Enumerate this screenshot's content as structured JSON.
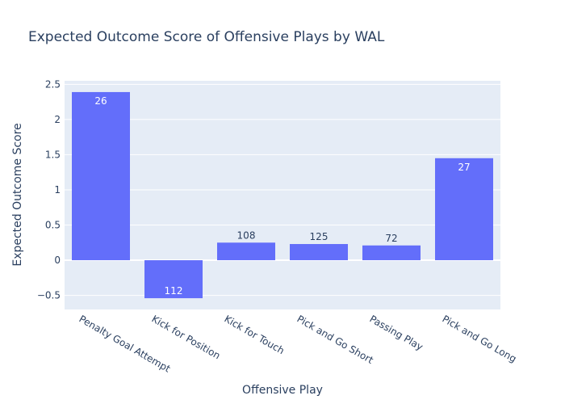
{
  "chart_data": {
    "type": "bar",
    "title": "Expected Outcome Score of Offensive Plays by WAL",
    "xlabel": "Offensive Play",
    "ylabel": "Expected Outcome Score",
    "categories": [
      "Penalty Goal Attempt",
      "Kick for Position",
      "Kick for Touch",
      "Pick and Go Short",
      "Passing Play",
      "Pick and Go Long"
    ],
    "values": [
      2.39,
      -0.54,
      0.25,
      0.23,
      0.21,
      1.45
    ],
    "bar_labels": [
      "26",
      "112",
      "108",
      "125",
      "72",
      "27"
    ],
    "ylim": [
      -0.7,
      2.55
    ],
    "yticks": [
      -0.5,
      0,
      0.5,
      1,
      1.5,
      2,
      2.5
    ],
    "ytick_labels": [
      "−0.5",
      "0",
      "0.5",
      "1",
      "1.5",
      "2",
      "2.5"
    ],
    "grid": true,
    "colors": {
      "bar": "#636efa",
      "plot_bg": "#e5ecf6",
      "grid": "#ffffff",
      "text": "#2a3f5f"
    }
  }
}
